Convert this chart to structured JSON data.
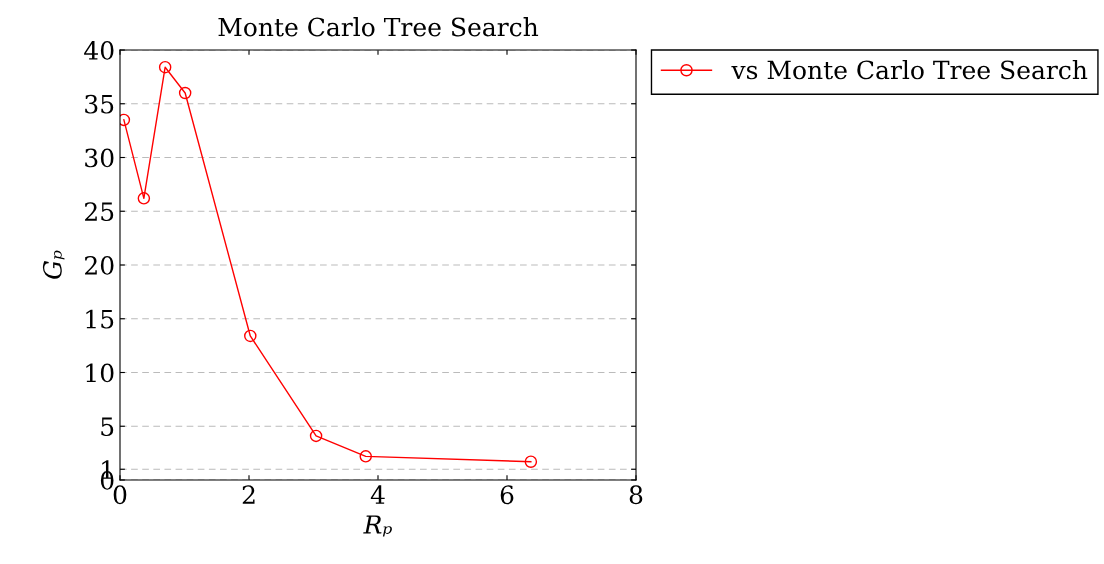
{
  "chart_data": {
    "type": "line",
    "title": "Monte Carlo Tree Search",
    "xlabel": "Rₚ",
    "ylabel": "Gₚ",
    "x": [
      0.06,
      0.37,
      0.7,
      1.01,
      2.02,
      3.04,
      3.81,
      6.37
    ],
    "series": [
      {
        "name": "vs Monte Carlo Tree Search",
        "color": "#ff0000",
        "values": [
          33.5,
          26.2,
          38.4,
          36.0,
          13.4,
          4.1,
          2.2,
          1.7
        ]
      }
    ],
    "xlim": [
      0,
      8
    ],
    "xticks": [
      0,
      2,
      4,
      6,
      8
    ],
    "ylim": [
      0,
      40
    ],
    "yticks": [
      0,
      1,
      5,
      10,
      15,
      20,
      25,
      30,
      35,
      40
    ],
    "grid": "y",
    "legend": "top right",
    "marker": "circle",
    "line_style": "solid"
  }
}
